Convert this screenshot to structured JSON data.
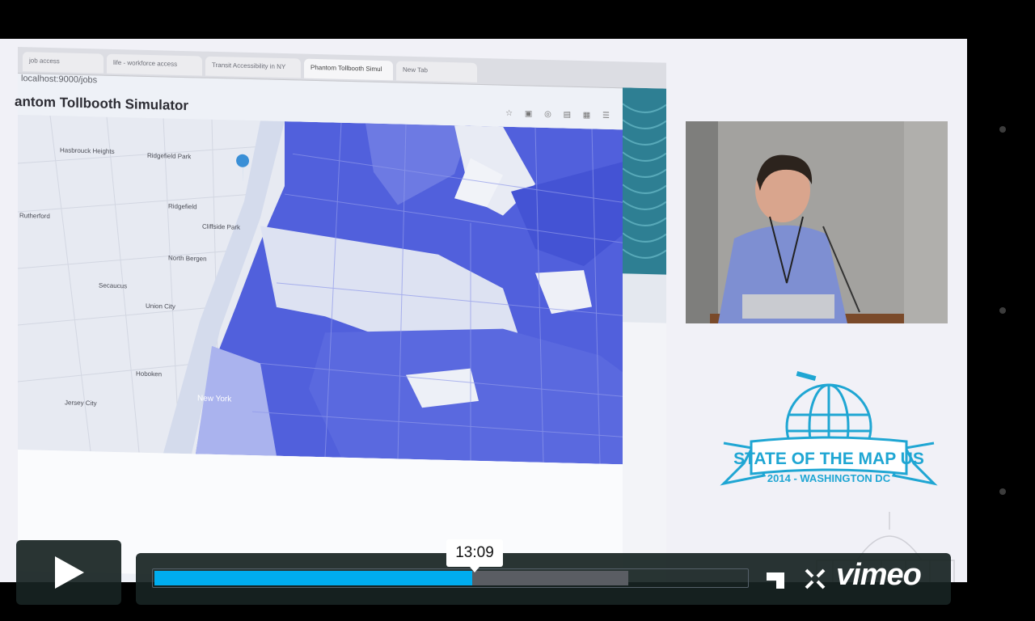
{
  "player": {
    "progress_fraction": 0.537,
    "buffered_fraction": 0.8,
    "tooltip_time": "13:09",
    "brand": "vimeo",
    "accent_color": "#00adef",
    "controls": {
      "play_icon": "play-icon",
      "fullscreen_icon": "fullscreen-icon",
      "collapse_icon": "collapse-icon"
    }
  },
  "slide": {
    "browser": {
      "tabs": [
        "job access",
        "life - workforce access",
        "Transit Accessibility in NY",
        "Phantom Tollbooth Simul",
        "New Tab"
      ],
      "address": "localhost:9000/jobs",
      "app_title": "antom Tollbooth Simulator"
    },
    "map_labels": [
      "Hasbrouck Heights",
      "Ridgefield Park",
      "Ridgefield",
      "Rutherford",
      "Cliffside Park",
      "North Bergen",
      "Secaucus",
      "Union City",
      "Hoboken",
      "Jersey City",
      "New York"
    ],
    "accent": "#3d48d6"
  },
  "logo": {
    "line1": "STATE OF THE MAP US",
    "line2": "2014 - WASHINGTON DC",
    "color": "#1fa6d3"
  }
}
